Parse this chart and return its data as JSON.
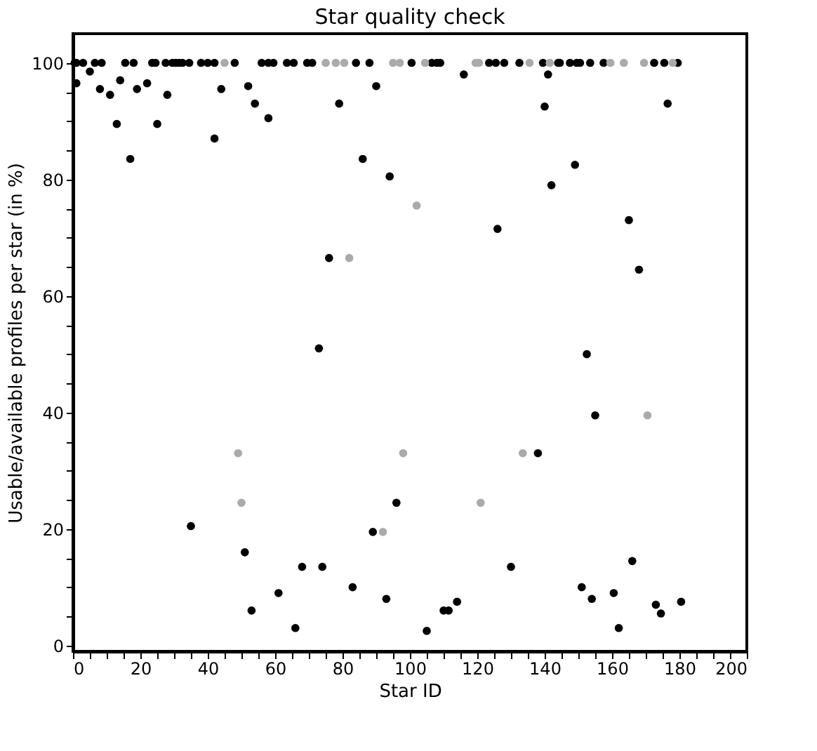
{
  "chart_data": {
    "type": "scatter",
    "title": "Star quality check",
    "xlabel": "Star ID",
    "ylabel": "Usable/available profiles per star (in %)",
    "xlim": [
      0,
      200
    ],
    "ylim": [
      -1,
      105
    ],
    "xticks": [
      0,
      {
        "value": 5,
        "label": null
      },
      {
        "value": 10,
        "label": null
      },
      {
        "value": 15,
        "label": null
      },
      20,
      {
        "value": 25,
        "label": null
      },
      {
        "value": 30,
        "label": null
      },
      {
        "value": 35,
        "label": null
      },
      40,
      {
        "value": 45,
        "label": null
      },
      {
        "value": 50,
        "label": null
      },
      {
        "value": 55,
        "label": null
      },
      60,
      {
        "value": 65,
        "label": null
      },
      {
        "value": 70,
        "label": null
      },
      {
        "value": 75,
        "label": null
      },
      80,
      {
        "value": 85,
        "label": null
      },
      {
        "value": 90,
        "label": null
      },
      {
        "value": 95,
        "label": null
      },
      100,
      {
        "value": 105,
        "label": null
      },
      {
        "value": 110,
        "label": null
      },
      {
        "value": 115,
        "label": null
      },
      120,
      {
        "value": 125,
        "label": null
      },
      {
        "value": 130,
        "label": null
      },
      {
        "value": 135,
        "label": null
      },
      140,
      {
        "value": 145,
        "label": null
      },
      {
        "value": 150,
        "label": null
      },
      {
        "value": 155,
        "label": null
      },
      160,
      {
        "value": 165,
        "label": null
      },
      {
        "value": 170,
        "label": null
      },
      {
        "value": 175,
        "label": null
      },
      180,
      {
        "value": 185,
        "label": null
      },
      {
        "value": 190,
        "label": null
      },
      {
        "value": 195,
        "label": null
      },
      200
    ],
    "yticks": [
      0,
      {
        "value": 5,
        "label": null
      },
      {
        "value": 10,
        "label": null
      },
      {
        "value": 15,
        "label": null
      },
      20,
      {
        "value": 25,
        "label": null
      },
      {
        "value": 30,
        "label": null
      },
      {
        "value": 35,
        "label": null
      },
      40,
      {
        "value": 45,
        "label": null
      },
      {
        "value": 50,
        "label": null
      },
      {
        "value": 55,
        "label": null
      },
      60,
      {
        "value": 65,
        "label": null
      },
      {
        "value": 70,
        "label": null
      },
      {
        "value": 75,
        "label": null
      },
      80,
      {
        "value": 85,
        "label": null
      },
      {
        "value": 90,
        "label": null
      },
      {
        "value": 95,
        "label": null
      },
      100
    ],
    "grid": false,
    "legend": false,
    "marker": "circle",
    "series": [
      {
        "color": "#000000",
        "x": [
          0.5,
          1,
          3,
          6.5,
          8.5,
          15.5,
          18,
          23.5,
          24.5,
          27.5,
          29.5,
          30.5,
          31.5,
          32.5,
          34.5,
          38,
          40,
          42,
          48,
          56,
          58,
          59.5,
          63.5,
          65.5,
          69.5,
          71,
          84,
          88,
          100.5,
          106.5,
          108,
          109,
          123.5,
          125.5,
          128,
          132.5,
          139.5,
          144,
          144.5,
          147.5,
          149.5,
          150.5,
          153.5,
          157.5,
          172.5,
          175.5,
          179.5,
          1,
          5,
          8,
          11,
          13,
          14,
          17,
          19,
          22,
          25,
          28,
          35,
          42,
          44,
          51,
          52,
          53,
          54,
          58,
          61,
          66,
          68,
          73,
          74,
          76,
          79,
          83,
          86,
          89,
          90,
          93,
          94,
          96,
          105,
          110,
          111.5,
          114,
          116,
          126,
          130,
          138,
          140,
          141,
          142,
          149,
          151,
          152.5,
          154,
          155,
          160.5,
          162,
          165,
          166,
          168,
          173,
          174.5,
          176.5,
          180.5
        ],
        "values": [
          100,
          100,
          100,
          100,
          100,
          100,
          100,
          100,
          100,
          100,
          100,
          100,
          100,
          100,
          100,
          100,
          100,
          100,
          100,
          100,
          100,
          100,
          100,
          100,
          100,
          100,
          100,
          100,
          100,
          100,
          100,
          100,
          100,
          100,
          100,
          100,
          100,
          100,
          100,
          100,
          100,
          100,
          100,
          100,
          100,
          100,
          100,
          96.5,
          98.5,
          95.5,
          94.5,
          89.5,
          97,
          83.5,
          95.5,
          96.5,
          89.5,
          94.5,
          20.5,
          87,
          95.5,
          16,
          96,
          6,
          93,
          90.5,
          9,
          3,
          13.5,
          51,
          13.5,
          66.5,
          93,
          10,
          83.5,
          19.5,
          96,
          8,
          80.5,
          24.5,
          2.5,
          6,
          6,
          7.5,
          98,
          71.5,
          13.5,
          33,
          92.5,
          98,
          79,
          82.5,
          10,
          50,
          8,
          39.5,
          9,
          3,
          73,
          14.5,
          64.5,
          7,
          5.5,
          93,
          7.5
        ]
      },
      {
        "color": "#aaaaaa",
        "x": [
          45,
          75,
          78,
          80.5,
          95,
          97,
          104.5,
          119.5,
          120.5,
          135.5,
          141.5,
          159.5,
          163.5,
          169.5,
          178,
          49,
          50,
          82,
          92,
          98,
          102,
          121,
          133.5,
          170.5
        ],
        "values": [
          100,
          100,
          100,
          100,
          100,
          100,
          100,
          100,
          100,
          100,
          100,
          100,
          100,
          100,
          100,
          33,
          24.5,
          66.5,
          19.5,
          33,
          75.5,
          24.5,
          33,
          39.5
        ]
      }
    ]
  }
}
